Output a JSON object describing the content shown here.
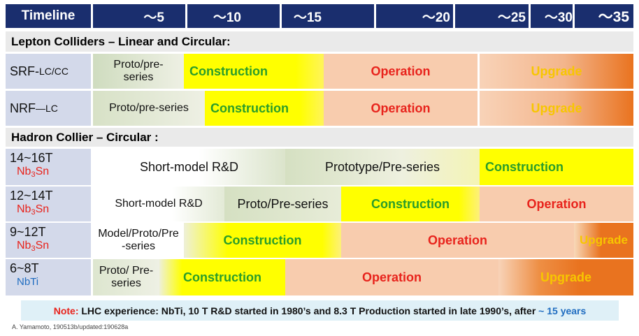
{
  "header": {
    "timeline_label": "Timeline",
    "ticks": [
      "～5",
      "～10",
      "～15",
      "～20",
      "～25",
      "～30",
      "～35"
    ]
  },
  "sections": {
    "lepton": "Lepton Colliders – Linear and Circular:",
    "hadron": "Hadron Collier – Circular :"
  },
  "rows": {
    "srf": {
      "label_main": "SRF-",
      "label_sub": "LC/CC",
      "segments": [
        "Proto/pre-series",
        "Construction",
        "Operation",
        "Upgrade"
      ]
    },
    "nrf": {
      "label_main": "NRF",
      "label_sub": "—LC",
      "segments": [
        "Proto/pre-series",
        "Construction",
        "Operation",
        "Upgrade"
      ]
    },
    "r1416": {
      "label_main": "14~16T",
      "label_mat_a": "Nb",
      "label_mat_sub": "3",
      "label_mat_b": "Sn",
      "segments": [
        "Short-model R&D",
        "Prototype/Pre-series",
        "Construction"
      ]
    },
    "r1214": {
      "label_main": "12~14T",
      "label_mat_a": "Nb",
      "label_mat_sub": "3",
      "label_mat_b": "Sn",
      "segments": [
        "Short-model R&D",
        "Proto/Pre-series",
        "Construction",
        "Operation"
      ]
    },
    "r912": {
      "label_main": "9~12T",
      "label_mat_a": "Nb",
      "label_mat_sub": "3",
      "label_mat_b": "Sn",
      "segments": [
        "Model/Proto/Pre-series",
        "Construction",
        "Operation",
        "Upgrade"
      ]
    },
    "r68": {
      "label_main": "6~8T",
      "label_mat": "NbTi",
      "segments": [
        "Proto/ Pre-series",
        "Construction",
        "Operation",
        "Upgrade"
      ]
    }
  },
  "note": {
    "prefix": "Note:",
    "p1": " LHC experience:  NbTi, 10 T R&D started in 1980’s and  8.3 T Production started in late 1990’s, after ",
    "highlight": "~ 15 years"
  },
  "credit": "A. Yamamoto, 190513b/updated:190628a",
  "colors": {
    "header_bg": "#1a2e6e",
    "label_bg": "#d3d9ea",
    "proto_bg": "#dde6cf",
    "construction_bg": "#ffff00",
    "operation_bg": "#f8ccae",
    "upgrade_bg": "#e9731f",
    "note_bg": "#dff0f7"
  }
}
